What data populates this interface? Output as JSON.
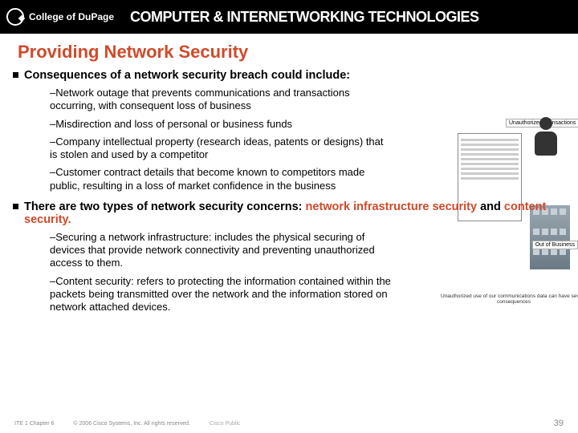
{
  "header": {
    "college": "College of DuPage",
    "tech_title": "COMPUTER & INTERNETWORKING TECHNOLOGIES"
  },
  "title": "Providing Network Security",
  "section1": {
    "heading": "Consequences of a network security breach could include:",
    "items": [
      "–Network outage that prevents communications and transactions occurring, with consequent loss of business",
      "–Misdirection and loss of personal or business funds",
      "–Company intellectual property (research ideas, patents or designs) that is stolen and used by a competitor",
      "–Customer contract details that become known to competitors made public, resulting in a loss of market confidence in the business"
    ]
  },
  "section2": {
    "heading_pre": "There are two types of network security concerns: ",
    "red1": "network infrastructure security",
    "mid": " and ",
    "red2": "content security.",
    "items": [
      "–Securing a network infrastructure: includes the physical securing of devices that provide network connectivity and preventing unauthorized access to them.",
      "–Content security: refers to protecting the information contained within the packets being transmitted over the network and the information stored on network attached devices."
    ]
  },
  "figure": {
    "label_top": "Unauthorized Transactions",
    "label_mid": "Out of Business",
    "caption": "Unauthorized use of our communications data can have severe consequences"
  },
  "footer": {
    "left1": "ITE 1 Chapter 6",
    "left2": "© 2006 Cisco Systems, Inc. All rights reserved.",
    "left3": "Cisco Public",
    "page": "39"
  },
  "colors": {
    "accent": "#d04a2a",
    "text": "#000000",
    "header_bg": "#000000",
    "footer_text": "#888888"
  }
}
